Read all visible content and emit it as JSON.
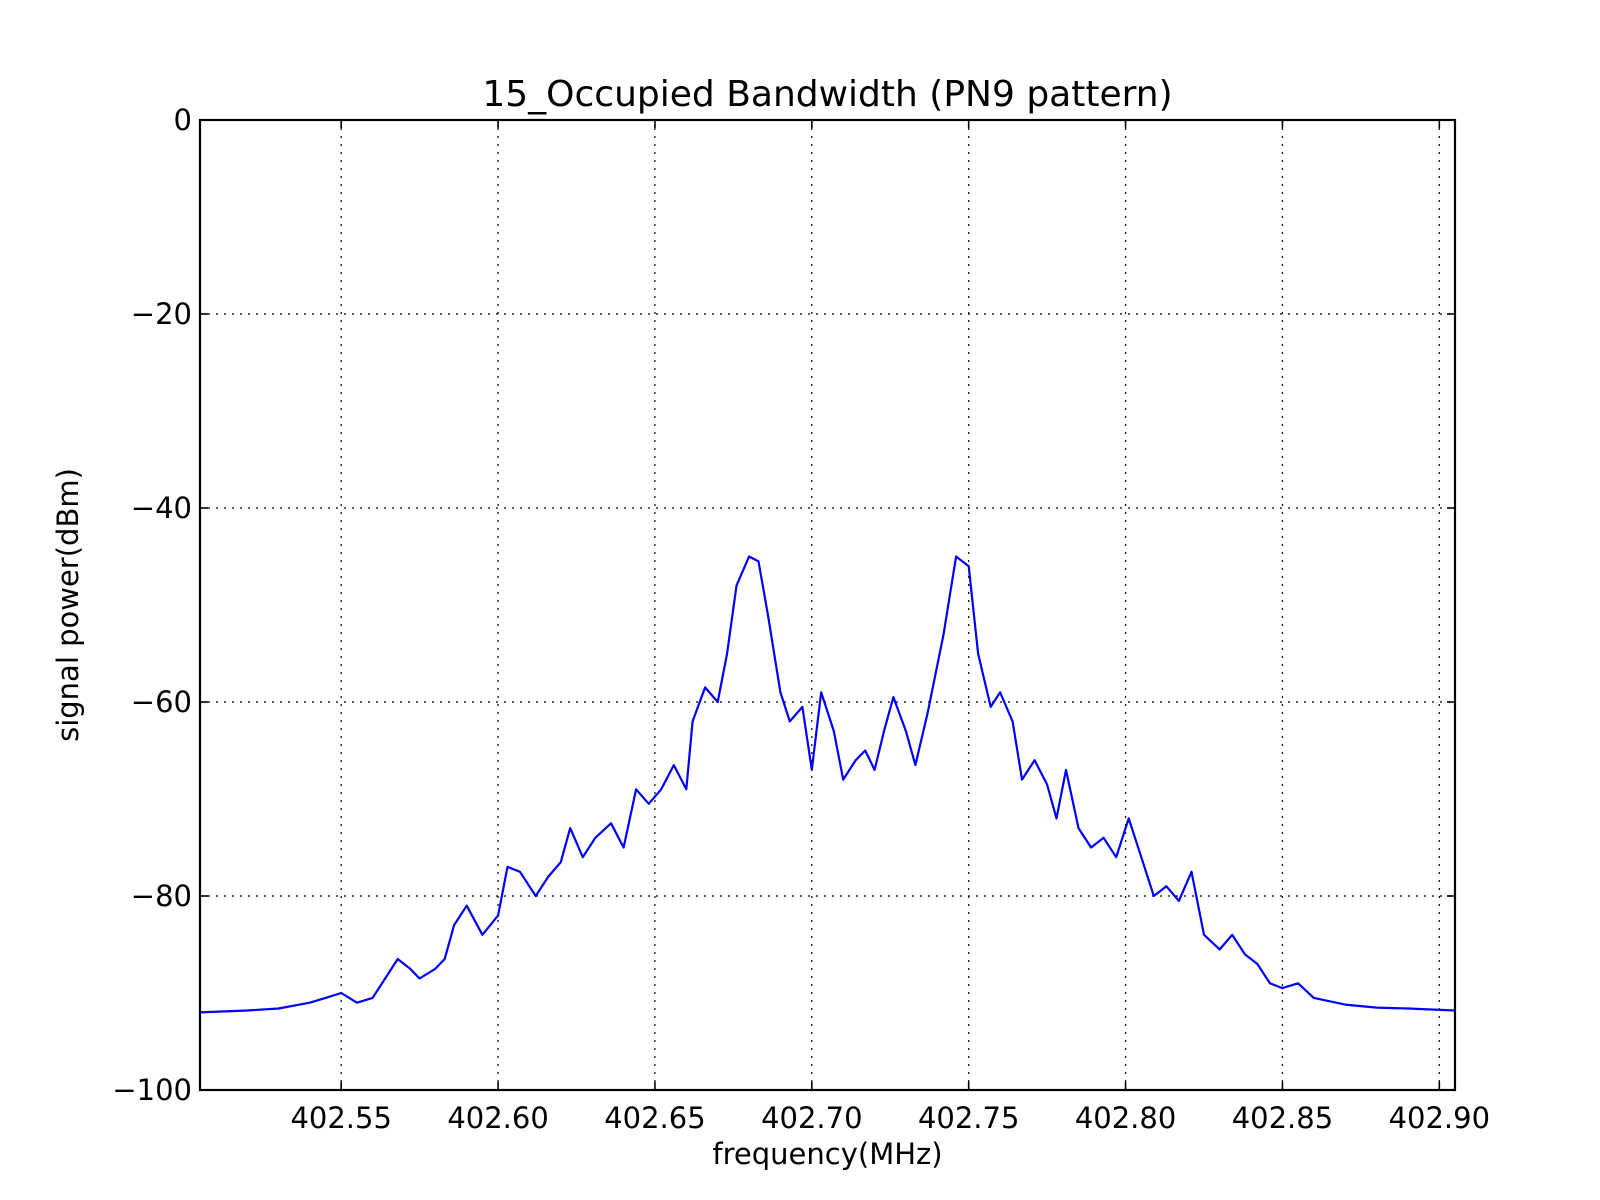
{
  "chart_data": {
    "type": "line",
    "title": "15_Occupied Bandwidth (PN9 pattern)",
    "xlabel": "frequency(MHz)",
    "ylabel": "signal power(dBm)",
    "xlim": [
      402.505,
      402.905
    ],
    "ylim": [
      -100,
      0
    ],
    "xticks": [
      402.55,
      402.6,
      402.65,
      402.7,
      402.75,
      402.8,
      402.85,
      402.9
    ],
    "xtick_labels": [
      "402.55",
      "402.60",
      "402.65",
      "402.70",
      "402.75",
      "402.80",
      "402.85",
      "402.90"
    ],
    "yticks": [
      0,
      -20,
      -40,
      -60,
      -80,
      -100
    ],
    "ytick_labels": [
      "0",
      "−20",
      "−40",
      "−60",
      "−80",
      "−100"
    ],
    "grid": true,
    "series": [
      {
        "color": "#0000ff",
        "x": [
          402.505,
          402.52,
          402.53,
          402.54,
          402.545,
          402.55,
          402.555,
          402.56,
          402.565,
          402.568,
          402.572,
          402.575,
          402.58,
          402.583,
          402.586,
          402.59,
          402.595,
          402.6,
          402.603,
          402.607,
          402.612,
          402.616,
          402.62,
          402.623,
          402.627,
          402.631,
          402.636,
          402.64,
          402.644,
          402.648,
          402.652,
          402.656,
          402.66,
          402.662,
          402.666,
          402.67,
          402.673,
          402.676,
          402.68,
          402.683,
          402.686,
          402.69,
          402.693,
          402.697,
          402.7,
          402.703,
          402.707,
          402.71,
          402.714,
          402.717,
          402.72,
          402.723,
          402.726,
          402.73,
          402.733,
          402.737,
          402.742,
          402.746,
          402.75,
          402.753,
          402.757,
          402.76,
          402.764,
          402.767,
          402.771,
          402.775,
          402.778,
          402.781,
          402.785,
          402.789,
          402.793,
          402.797,
          402.801,
          402.805,
          402.809,
          402.813,
          402.817,
          402.821,
          402.825,
          402.83,
          402.834,
          402.838,
          402.842,
          402.846,
          402.85,
          402.855,
          402.86,
          402.87,
          402.88,
          402.89,
          402.905
        ],
        "y": [
          -92,
          -91.8,
          -91.6,
          -91,
          -90.5,
          -90,
          -91,
          -90.5,
          -88,
          -86.5,
          -87.5,
          -88.5,
          -87.5,
          -86.5,
          -83,
          -81,
          -84,
          -82,
          -77,
          -77.5,
          -80,
          -78,
          -76.5,
          -73,
          -76,
          -74,
          -72.5,
          -75,
          -69,
          -70.5,
          -69,
          -66.5,
          -69,
          -62,
          -58.5,
          -60,
          -55,
          -48,
          -45,
          -45.5,
          -51,
          -59,
          -62,
          -60.5,
          -67,
          -59,
          -63,
          -68,
          -66,
          -65,
          -67,
          -63,
          -59.5,
          -63,
          -66.5,
          -61,
          -53,
          -45,
          -46,
          -55,
          -60.5,
          -59,
          -62,
          -68,
          -66,
          -68.5,
          -72,
          -67,
          -73,
          -75,
          -74,
          -76,
          -72,
          -76,
          -80,
          -79,
          -80.5,
          -77.5,
          -84,
          -85.5,
          -84,
          -86,
          -87,
          -89,
          -89.5,
          -89,
          -90.5,
          -91.2,
          -91.5,
          -91.6,
          -91.8
        ]
      }
    ]
  }
}
